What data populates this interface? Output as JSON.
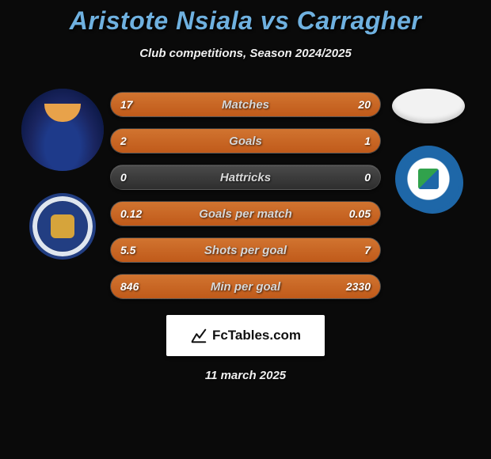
{
  "title": "Aristote Nsiala vs Carragher",
  "subtitle": "Club competitions, Season 2024/2025",
  "date": "11 march 2025",
  "brand": {
    "text": "FcTables.com",
    "bg": "#ffffff",
    "fg": "#111111"
  },
  "colors": {
    "page_bg": "#0a0a0a",
    "title_color": "#6fb1e0",
    "bar_track": "#3a3a3a",
    "bar_fill": "#c05a1a",
    "text_color": "#ffffff"
  },
  "left_side": {
    "avatar_name": "player-avatar-nsiala",
    "club_name": "shrewsbury-town-logo"
  },
  "right_side": {
    "avatar_name": "player-avatar-carragher",
    "club_name": "wigan-athletic-logo"
  },
  "stats": [
    {
      "label": "Matches",
      "left_val": "17",
      "right_val": "20",
      "left_pct": 46,
      "right_pct": 54
    },
    {
      "label": "Goals",
      "left_val": "2",
      "right_val": "1",
      "left_pct": 67,
      "right_pct": 33
    },
    {
      "label": "Hattricks",
      "left_val": "0",
      "right_val": "0",
      "left_pct": 0,
      "right_pct": 0
    },
    {
      "label": "Goals per match",
      "left_val": "0.12",
      "right_val": "0.05",
      "left_pct": 71,
      "right_pct": 29
    },
    {
      "label": "Shots per goal",
      "left_val": "5.5",
      "right_val": "7",
      "left_pct": 44,
      "right_pct": 56
    },
    {
      "label": "Min per goal",
      "left_val": "846",
      "right_val": "2330",
      "left_pct": 27,
      "right_pct": 73
    }
  ]
}
